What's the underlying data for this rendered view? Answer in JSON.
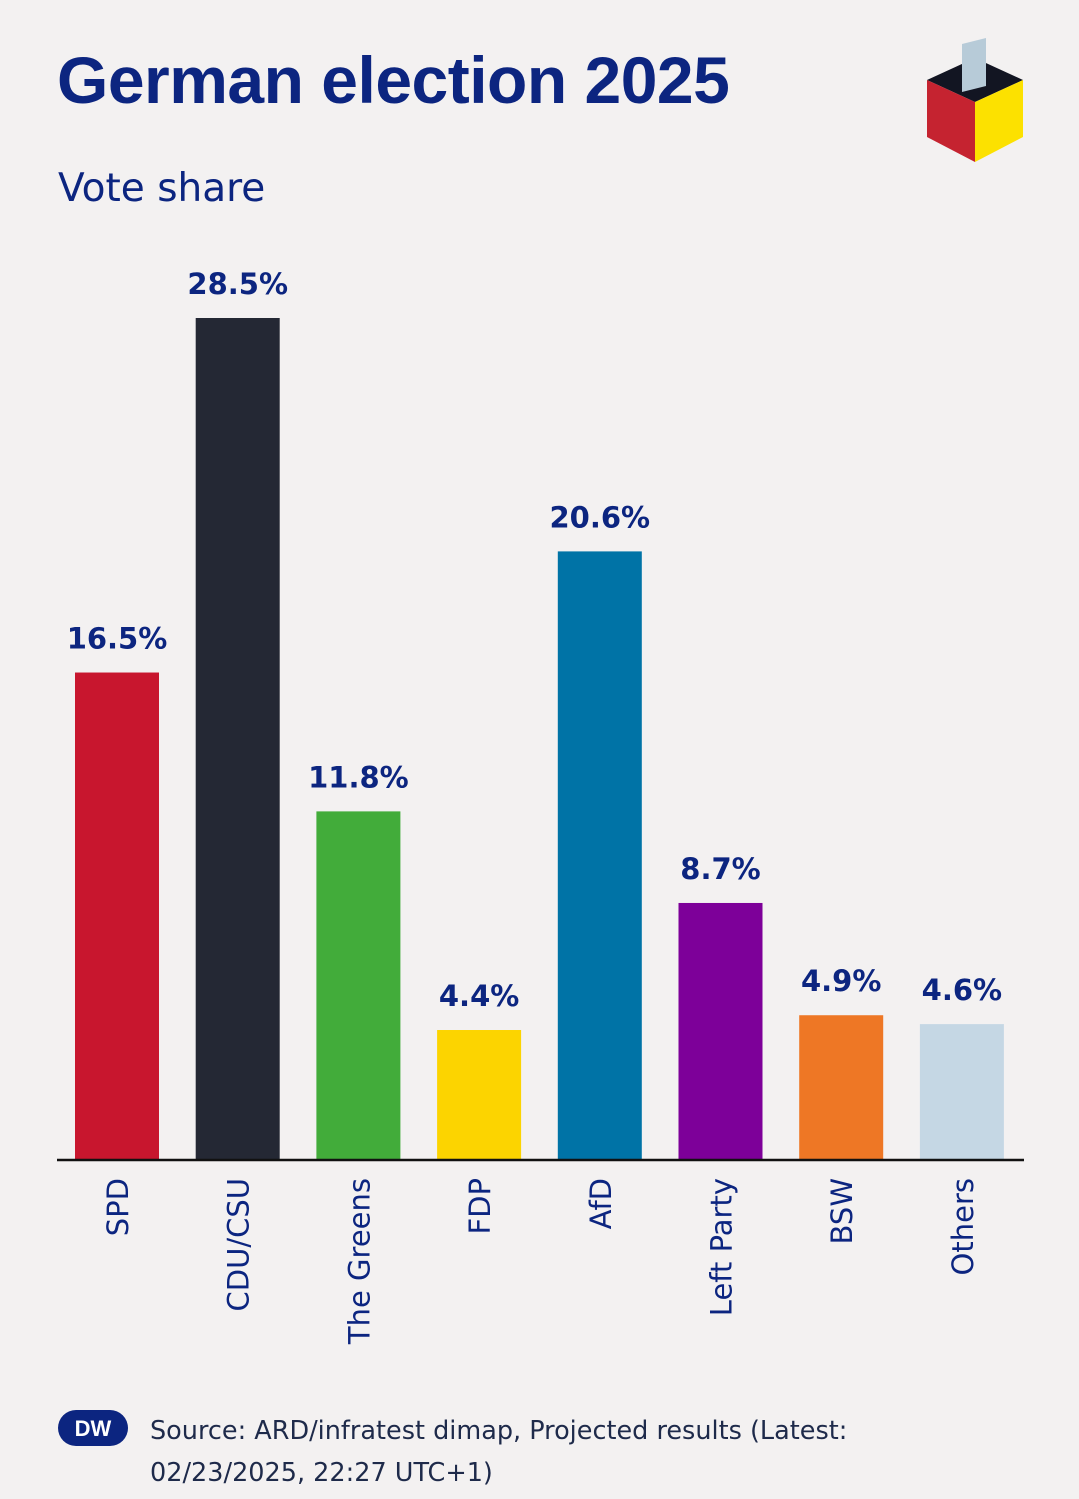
{
  "title": "German election 2025",
  "subtitle": "Vote share",
  "source": "Source: ARD/infratest dimap, Projected results (Latest: 02/23/2025, 22:27 UTC+1)",
  "brand": {
    "logo_text": "DW",
    "logo_icon": "ballot-box-icon",
    "brand_icon": "dw-logo-icon"
  },
  "chart_data": {
    "type": "bar",
    "title": "German election 2025",
    "subtitle": "Vote share",
    "categories": [
      "SPD",
      "CDU/CSU",
      "The Greens",
      "FDP",
      "AfD",
      "Left Party",
      "BSW",
      "Others"
    ],
    "values": [
      16.5,
      28.5,
      11.8,
      4.4,
      20.6,
      8.7,
      4.9,
      4.6
    ],
    "value_labels": [
      "16.5%",
      "28.5%",
      "11.8%",
      "4.4%",
      "20.6%",
      "8.7%",
      "4.9%",
      "4.6%"
    ],
    "colors": [
      "#c8162e",
      "#242834",
      "#42ac3a",
      "#fcd400",
      "#0073a6",
      "#7d0099",
      "#ee7725",
      "#c5d7e4"
    ],
    "unit": "%",
    "ylim": [
      0,
      28.5
    ],
    "grid": false,
    "legend": "none"
  }
}
